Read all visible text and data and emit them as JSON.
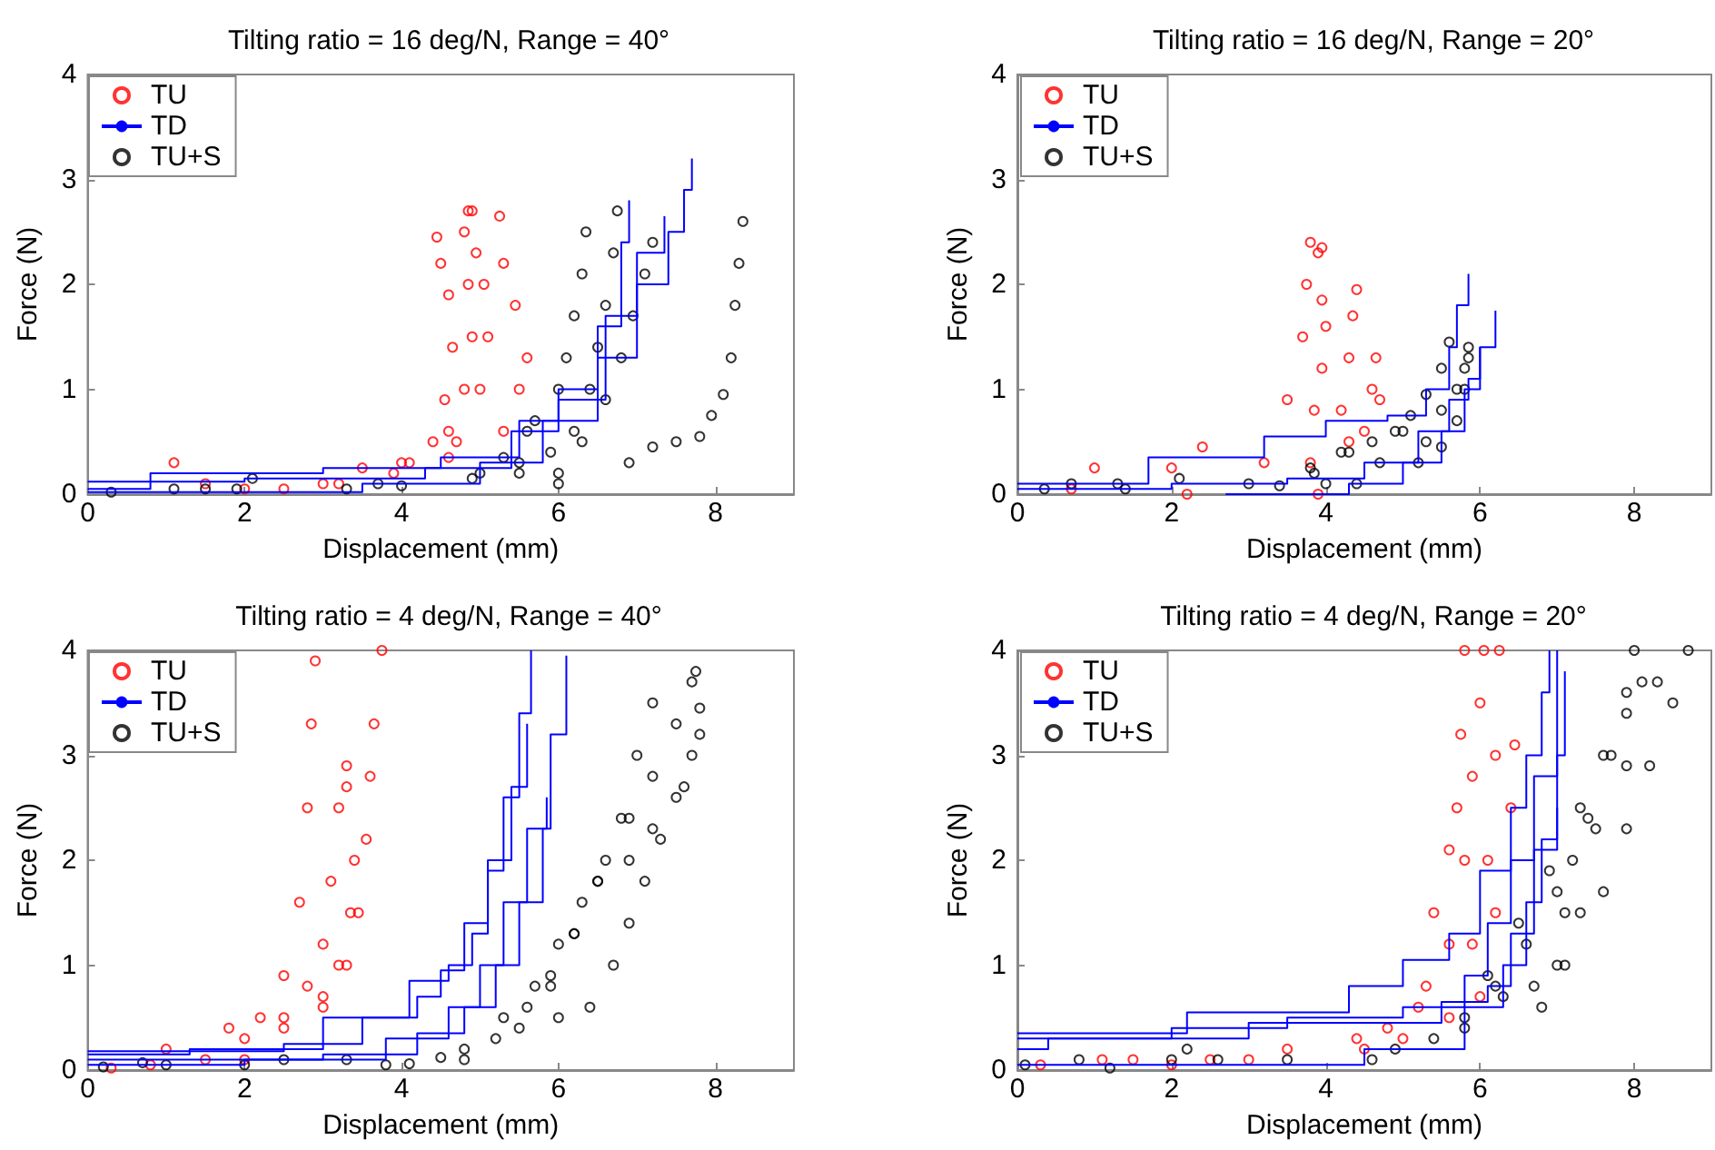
{
  "chart_data": [
    {
      "type": "scatter",
      "title": "Tilting ratio = 16 deg/N, Range = 40°",
      "xlabel": "Displacement (mm)",
      "ylabel": "Force (N)",
      "xlim": [
        0,
        9
      ],
      "xticks": [
        0,
        2,
        4,
        6,
        8
      ],
      "ylim": [
        0,
        4
      ],
      "yticks": [
        0,
        1,
        2,
        3,
        4
      ],
      "grid": false,
      "legend": "top left",
      "series": [
        {
          "name": "TU",
          "type": "scatter",
          "marker": "circle",
          "color": "#ff0000",
          "x": [
            1.1,
            2.5,
            3.5,
            4.1,
            4.4,
            4.55,
            4.65,
            4.6,
            4.5,
            4.45
          ],
          "values": [
            0.3,
            0.05,
            0.25,
            0.3,
            0.5,
            0.9,
            1.4,
            1.9,
            2.2,
            2.45
          ]
        },
        {
          "type": "scatter",
          "marker": "circle",
          "color": "#ff0000",
          "x": [
            1.5,
            3.0,
            4.0,
            4.6,
            4.8,
            4.9,
            4.85,
            4.8,
            4.85
          ],
          "values": [
            0.1,
            0.1,
            0.3,
            0.6,
            1.0,
            1.5,
            2.0,
            2.5,
            2.7
          ]
        },
        {
          "type": "scatter",
          "marker": "circle",
          "color": "#ff0000",
          "x": [
            2.0,
            3.9,
            4.7,
            5.0,
            5.1,
            5.05,
            4.95,
            4.9
          ],
          "values": [
            0.05,
            0.2,
            0.5,
            1.0,
            1.5,
            2.0,
            2.3,
            2.7
          ]
        },
        {
          "type": "scatter",
          "marker": "circle",
          "color": "#ff0000",
          "x": [
            3.2,
            4.6,
            5.3,
            5.5,
            5.6,
            5.45,
            5.3,
            5.25
          ],
          "values": [
            0.1,
            0.35,
            0.6,
            1.0,
            1.3,
            1.8,
            2.2,
            2.65
          ]
        },
        {
          "name": "TD",
          "type": "step",
          "color": "#0000ff",
          "x": [
            0,
            0.8,
            3.0,
            4.5,
            5.5,
            6.0,
            6.5,
            6.8,
            6.9
          ],
          "values": [
            0.05,
            0.2,
            0.25,
            0.35,
            0.7,
            1.0,
            1.6,
            2.4,
            2.8
          ]
        },
        {
          "type": "step",
          "color": "#0000ff",
          "x": [
            0,
            2.0,
            4.3,
            5.4,
            6.0,
            6.6,
            7.0,
            7.35
          ],
          "values": [
            0.12,
            0.15,
            0.25,
            0.6,
            0.9,
            1.7,
            2.3,
            2.65
          ]
        },
        {
          "type": "step",
          "color": "#0000ff",
          "x": [
            0,
            3.5,
            5.0,
            5.8,
            6.5,
            7.0,
            7.4,
            7.6,
            7.7
          ],
          "values": [
            0.02,
            0.1,
            0.3,
            0.7,
            1.3,
            2.0,
            2.5,
            2.9,
            3.2
          ]
        },
        {
          "name": "TU+S",
          "type": "scatter",
          "marker": "circle",
          "color": "#000000",
          "x": [
            0.3,
            1.1,
            1.5,
            2.1,
            3.3,
            4.0,
            4.9,
            5.3,
            5.6,
            5.7,
            6.0,
            6.1,
            6.2,
            6.3,
            6.35
          ],
          "values": [
            0.02,
            0.05,
            0.05,
            0.15,
            0.05,
            0.08,
            0.15,
            0.35,
            0.6,
            0.7,
            1.0,
            1.3,
            1.7,
            2.1,
            2.5
          ]
        },
        {
          "type": "scatter",
          "marker": "circle",
          "color": "#000000",
          "x": [
            1.9,
            3.7,
            5.0,
            5.5,
            5.9,
            6.2,
            6.4,
            6.5,
            6.6,
            6.7,
            6.75
          ],
          "values": [
            0.05,
            0.1,
            0.2,
            0.3,
            0.4,
            0.6,
            1.0,
            1.4,
            1.8,
            2.3,
            2.7
          ]
        },
        {
          "type": "scatter",
          "marker": "circle",
          "color": "#000000",
          "x": [
            5.5,
            6.0,
            6.3,
            6.6,
            6.8,
            6.95,
            7.1,
            7.2
          ],
          "values": [
            0.2,
            0.1,
            0.5,
            0.9,
            1.3,
            1.7,
            2.1,
            2.4
          ]
        },
        {
          "type": "scatter",
          "marker": "circle",
          "color": "#000000",
          "x": [
            6.0,
            6.9,
            7.2,
            7.5,
            7.8,
            7.95,
            8.1,
            8.2,
            8.25,
            8.3,
            8.35
          ],
          "values": [
            0.2,
            0.3,
            0.45,
            0.5,
            0.55,
            0.75,
            0.95,
            1.3,
            1.8,
            2.2,
            2.6
          ]
        }
      ]
    },
    {
      "type": "scatter",
      "title": "Tilting ratio = 16 deg/N, Range = 20°",
      "xlabel": "Displacement (mm)",
      "ylabel": "Force (N)",
      "xlim": [
        0,
        9
      ],
      "xticks": [
        0,
        2,
        4,
        6,
        8
      ],
      "ylim": [
        0,
        4
      ],
      "yticks": [
        0,
        1,
        2,
        3,
        4
      ],
      "grid": false,
      "legend": "top left",
      "series": [
        {
          "name": "TU",
          "type": "scatter",
          "marker": "circle",
          "color": "#ff0000",
          "x": [
            1.0,
            2.4,
            3.5,
            3.7,
            3.75,
            3.8,
            3.9,
            3.95
          ],
          "values": [
            0.25,
            0.45,
            0.9,
            1.5,
            2.0,
            2.4,
            2.3,
            2.35
          ]
        },
        {
          "type": "scatter",
          "marker": "circle",
          "color": "#ff0000",
          "x": [
            0.7,
            2.0,
            3.2,
            3.85,
            3.95,
            4.0,
            3.95
          ],
          "values": [
            0.05,
            0.25,
            0.3,
            0.8,
            1.2,
            1.6,
            1.85
          ]
        },
        {
          "type": "scatter",
          "marker": "circle",
          "color": "#ff0000",
          "x": [
            2.2,
            3.8,
            4.2,
            4.3,
            4.35,
            4.4
          ],
          "values": [
            0.0,
            0.3,
            0.8,
            1.3,
            1.7,
            1.95
          ]
        },
        {
          "type": "scatter",
          "marker": "circle",
          "color": "#ff0000",
          "x": [
            3.9,
            4.3,
            4.5,
            4.6,
            4.65,
            4.7
          ],
          "values": [
            0.0,
            0.5,
            0.6,
            1.0,
            1.3,
            0.9
          ]
        },
        {
          "name": "TD",
          "type": "step",
          "color": "#0000ff",
          "x": [
            0,
            1.7,
            3.2,
            4.0,
            4.8,
            5.3,
            5.6,
            5.7,
            5.85
          ],
          "values": [
            0.1,
            0.35,
            0.55,
            0.7,
            0.75,
            1.0,
            1.4,
            1.8,
            2.1
          ]
        },
        {
          "type": "step",
          "color": "#0000ff",
          "x": [
            0,
            2.0,
            3.5,
            4.5,
            5.2,
            5.6,
            5.85,
            6.0,
            6.2
          ],
          "values": [
            0.05,
            0.1,
            0.15,
            0.3,
            0.6,
            0.9,
            1.1,
            1.4,
            1.75
          ]
        },
        {
          "type": "step",
          "color": "#0000ff",
          "x": [
            2.7,
            4.3,
            5.0,
            5.5,
            5.8,
            6.0
          ],
          "values": [
            0,
            0.1,
            0.3,
            0.6,
            1.0,
            1.4
          ]
        },
        {
          "name": "TU+S",
          "type": "scatter",
          "marker": "circle",
          "color": "#000000",
          "x": [
            0.35,
            0.7,
            1.3,
            1.4,
            2.1,
            3.0,
            3.4,
            3.8,
            4.2,
            4.6,
            4.9,
            5.1,
            5.3,
            5.5,
            5.6
          ],
          "values": [
            0.05,
            0.1,
            0.1,
            0.05,
            0.15,
            0.1,
            0.08,
            0.25,
            0.4,
            0.5,
            0.6,
            0.75,
            0.95,
            1.2,
            1.45
          ]
        },
        {
          "type": "scatter",
          "marker": "circle",
          "color": "#000000",
          "x": [
            3.85,
            4.0,
            4.3,
            4.7,
            5.0,
            5.3,
            5.5,
            5.7,
            5.8,
            5.85
          ],
          "values": [
            0.2,
            0.1,
            0.4,
            0.3,
            0.6,
            0.5,
            0.8,
            1.0,
            1.2,
            1.4
          ]
        },
        {
          "type": "scatter",
          "marker": "circle",
          "color": "#000000",
          "x": [
            4.4,
            5.2,
            5.5,
            5.7,
            5.8,
            5.85
          ],
          "values": [
            0.1,
            0.3,
            0.45,
            0.7,
            1.0,
            1.3
          ]
        }
      ]
    },
    {
      "type": "scatter",
      "title": "Tilting ratio = 4 deg/N, Range = 40°",
      "xlabel": "Displacement (mm)",
      "ylabel": "Force (N)",
      "xlim": [
        0,
        9
      ],
      "xticks": [
        0,
        2,
        4,
        6,
        8
      ],
      "ylim": [
        0,
        4
      ],
      "yticks": [
        0,
        1,
        2,
        3,
        4
      ],
      "grid": false,
      "legend": "top left",
      "series": [
        {
          "name": "TU",
          "type": "scatter",
          "marker": "circle",
          "color": "#ff0000",
          "x": [
            0.3,
            1.0,
            1.8,
            2.2,
            2.5,
            2.7,
            2.8,
            2.85,
            2.9
          ],
          "values": [
            0.02,
            0.2,
            0.4,
            0.5,
            0.9,
            1.6,
            2.5,
            3.3,
            3.9
          ]
        },
        {
          "type": "scatter",
          "marker": "circle",
          "color": "#ff0000",
          "x": [
            0.8,
            2.0,
            2.5,
            2.8,
            3.0,
            3.1,
            3.2,
            3.3
          ],
          "values": [
            0.05,
            0.3,
            0.5,
            0.8,
            1.2,
            1.8,
            2.5,
            2.9
          ]
        },
        {
          "type": "scatter",
          "marker": "circle",
          "color": "#ff0000",
          "x": [
            1.5,
            2.5,
            3.0,
            3.2,
            3.35,
            3.4,
            3.3
          ],
          "values": [
            0.1,
            0.4,
            0.7,
            1.0,
            1.5,
            2.0,
            2.7
          ]
        },
        {
          "type": "scatter",
          "marker": "circle",
          "color": "#ff0000",
          "x": [
            2.0,
            3.0,
            3.3,
            3.45,
            3.55,
            3.6,
            3.65,
            3.75
          ],
          "values": [
            0.1,
            0.6,
            1.0,
            1.5,
            2.2,
            2.8,
            3.3,
            4.0
          ]
        },
        {
          "name": "TD",
          "type": "step",
          "color": "#0000ff",
          "x": [
            0,
            2.5,
            3.5,
            4.1,
            4.6,
            4.9,
            5.1,
            5.3,
            5.5,
            5.65
          ],
          "values": [
            0.18,
            0.25,
            0.5,
            0.85,
            1.0,
            1.3,
            1.9,
            2.6,
            3.4,
            4.0
          ]
        },
        {
          "type": "step",
          "color": "#0000ff",
          "x": [
            0,
            1.3,
            3.0,
            4.2,
            4.5,
            4.8,
            5.1,
            5.4,
            5.6
          ],
          "values": [
            0.15,
            0.2,
            0.5,
            0.7,
            0.95,
            1.4,
            2.0,
            2.7,
            3.3
          ]
        },
        {
          "type": "step",
          "color": "#0000ff",
          "x": [
            0,
            2.0,
            3.8,
            4.6,
            5.0,
            5.3,
            5.6,
            5.9,
            6.1
          ],
          "values": [
            0.05,
            0.1,
            0.3,
            0.6,
            1.0,
            1.6,
            2.3,
            3.2,
            3.95
          ]
        },
        {
          "type": "step",
          "color": "#0000ff",
          "x": [
            0,
            3.0,
            4.2,
            4.8,
            5.2,
            5.5,
            5.8,
            5.85
          ],
          "values": [
            0.1,
            0.15,
            0.35,
            0.6,
            1.0,
            1.6,
            2.3,
            2.6
          ]
        },
        {
          "name": "TU+S",
          "type": "scatter",
          "marker": "circle",
          "color": "#000000",
          "x": [
            0.2,
            0.7,
            1.0,
            2.0,
            2.5,
            3.3,
            3.8,
            4.1,
            4.5,
            4.8,
            5.2,
            5.6,
            5.9,
            6.2,
            6.5,
            6.8,
            7.0,
            7.2
          ],
          "values": [
            0.03,
            0.07,
            0.05,
            0.05,
            0.1,
            0.1,
            0.05,
            0.06,
            0.12,
            0.1,
            0.3,
            0.6,
            0.9,
            1.3,
            1.8,
            2.4,
            3.0,
            3.5
          ]
        },
        {
          "type": "scatter",
          "marker": "circle",
          "color": "#000000",
          "x": [
            4.8,
            5.3,
            5.7,
            6.0,
            6.3,
            6.6,
            6.9,
            7.2,
            7.5,
            7.7,
            7.75
          ],
          "values": [
            0.2,
            0.5,
            0.8,
            1.2,
            1.6,
            2.0,
            2.4,
            2.8,
            3.3,
            3.7,
            3.8
          ]
        },
        {
          "type": "scatter",
          "marker": "circle",
          "color": "#000000",
          "x": [
            6.0,
            6.4,
            6.7,
            6.9,
            7.1,
            7.3,
            7.5,
            7.7,
            7.8
          ],
          "values": [
            0.5,
            0.6,
            1.0,
            1.4,
            1.8,
            2.2,
            2.6,
            3.0,
            3.45
          ]
        },
        {
          "type": "scatter",
          "marker": "circle",
          "color": "#000000",
          "x": [
            5.5,
            5.9,
            6.2,
            6.5,
            6.9,
            7.2,
            7.6,
            7.8
          ],
          "values": [
            0.4,
            0.8,
            1.3,
            1.8,
            2.0,
            2.3,
            2.7,
            3.2
          ]
        }
      ]
    },
    {
      "type": "scatter",
      "title": "Tilting ratio = 4 deg/N, Range = 20°",
      "xlabel": "Displacement (mm)",
      "ylabel": "Force (N)",
      "xlim": [
        0,
        9
      ],
      "xticks": [
        0,
        2,
        4,
        6,
        8
      ],
      "ylim": [
        0,
        4
      ],
      "yticks": [
        0,
        1,
        2,
        3,
        4
      ],
      "grid": false,
      "legend": "top left",
      "series": [
        {
          "name": "TU",
          "type": "scatter",
          "marker": "circle",
          "color": "#ff0000",
          "x": [
            0.3,
            1.5,
            3.5,
            4.8,
            5.3,
            5.4,
            5.6,
            5.7,
            5.75,
            5.8
          ],
          "values": [
            0.05,
            0.1,
            0.2,
            0.4,
            0.8,
            1.5,
            2.1,
            2.5,
            3.2,
            4.0
          ]
        },
        {
          "type": "scatter",
          "marker": "circle",
          "color": "#ff0000",
          "x": [
            1.1,
            2.0,
            4.4,
            5.2,
            5.6,
            5.8,
            5.9,
            6.0,
            6.05
          ],
          "values": [
            0.1,
            0.05,
            0.3,
            0.6,
            1.2,
            2.0,
            2.8,
            3.5,
            4.0
          ]
        },
        {
          "type": "scatter",
          "marker": "circle",
          "color": "#ff0000",
          "x": [
            2.5,
            4.5,
            5.6,
            5.9,
            6.1,
            6.2,
            6.25
          ],
          "values": [
            0.1,
            0.2,
            0.5,
            1.2,
            2.0,
            3.0,
            4.0
          ]
        },
        {
          "type": "scatter",
          "marker": "circle",
          "color": "#ff0000",
          "x": [
            3.0,
            5.0,
            6.0,
            6.2,
            6.4,
            6.45
          ],
          "values": [
            0.1,
            0.3,
            0.7,
            1.5,
            2.5,
            3.1
          ]
        },
        {
          "name": "TD",
          "type": "step",
          "color": "#0000ff",
          "x": [
            0,
            2.2,
            4.3,
            5.0,
            5.6,
            6.0,
            6.4,
            6.6,
            6.8,
            6.9
          ],
          "values": [
            0.35,
            0.55,
            0.8,
            1.05,
            1.3,
            1.9,
            2.5,
            3.0,
            3.6,
            4.0
          ]
        },
        {
          "type": "step",
          "color": "#0000ff",
          "x": [
            0,
            2.0,
            3.5,
            5.0,
            5.8,
            6.1,
            6.4,
            6.7,
            7.0
          ],
          "values": [
            0.3,
            0.4,
            0.5,
            0.6,
            0.9,
            1.4,
            2.0,
            2.8,
            4.0
          ]
        },
        {
          "type": "step",
          "color": "#0000ff",
          "x": [
            0,
            0.4,
            3.0,
            5.5,
            6.1,
            6.4,
            6.7,
            7.0,
            7.1
          ],
          "values": [
            0.2,
            0.3,
            0.45,
            0.65,
            0.8,
            1.3,
            2.1,
            3.0,
            3.8
          ]
        },
        {
          "type": "step",
          "color": "#0000ff",
          "x": [
            0,
            2.9,
            4.5,
            5.8,
            6.3,
            6.6,
            6.8,
            7.0
          ],
          "values": [
            0.05,
            0.05,
            0.2,
            0.6,
            1.0,
            1.6,
            2.2,
            2.5
          ]
        },
        {
          "name": "TU+S",
          "type": "scatter",
          "marker": "circle",
          "color": "#000000",
          "x": [
            0.1,
            0.8,
            1.2,
            2.0,
            2.2,
            2.6,
            3.5,
            4.6,
            4.9,
            5.4,
            5.8,
            6.1,
            6.5,
            6.9,
            7.3,
            7.6,
            7.9,
            8.0
          ],
          "values": [
            0.05,
            0.1,
            0.02,
            0.1,
            0.2,
            0.1,
            0.1,
            0.1,
            0.2,
            0.3,
            0.5,
            0.9,
            1.4,
            1.9,
            2.5,
            3.0,
            3.6,
            4.0
          ]
        },
        {
          "type": "scatter",
          "marker": "circle",
          "color": "#000000",
          "x": [
            5.8,
            6.2,
            6.6,
            7.0,
            7.4,
            7.7,
            7.9,
            8.1
          ],
          "values": [
            0.4,
            0.8,
            1.2,
            1.7,
            2.4,
            3.0,
            3.4,
            3.7
          ]
        },
        {
          "type": "scatter",
          "marker": "circle",
          "color": "#000000",
          "x": [
            6.8,
            7.1,
            7.3,
            7.6,
            7.9,
            8.2,
            8.5,
            8.7
          ],
          "values": [
            0.6,
            1.0,
            1.5,
            1.7,
            2.3,
            2.9,
            3.5,
            4.0
          ]
        },
        {
          "type": "scatter",
          "marker": "circle",
          "color": "#000000",
          "x": [
            6.3,
            6.7,
            7.0,
            7.1,
            7.2,
            7.5,
            7.9,
            8.3
          ],
          "values": [
            0.7,
            0.8,
            1.0,
            1.5,
            2.0,
            2.3,
            2.9,
            3.7
          ]
        }
      ]
    }
  ]
}
